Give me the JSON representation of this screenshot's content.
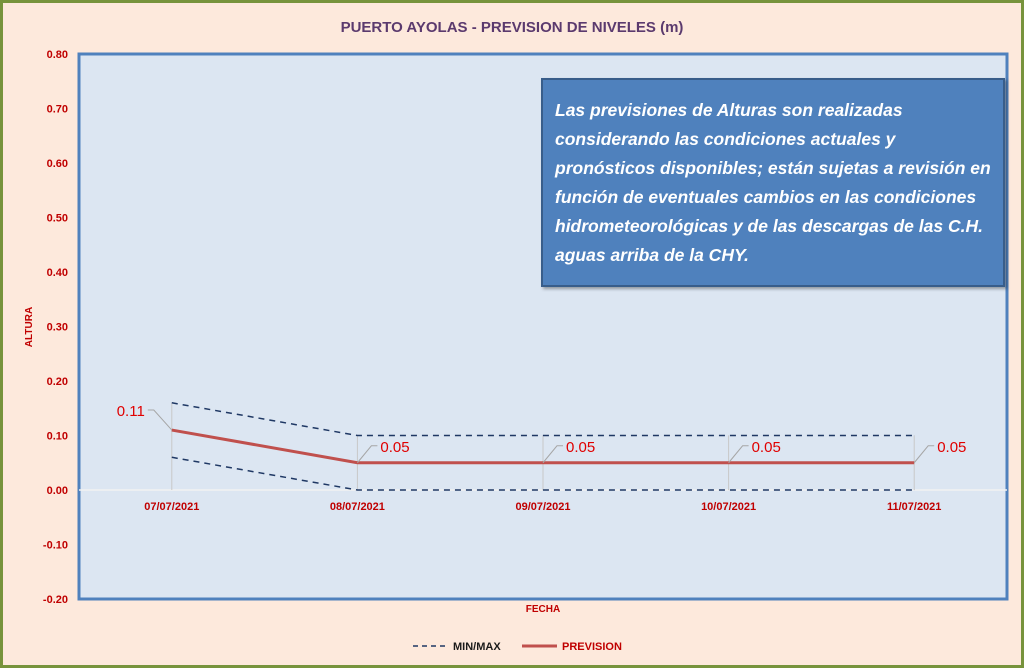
{
  "chart_data": {
    "type": "line",
    "title": "PUERTO AYOLAS - PREVISION DE NIVELES (m)",
    "xlabel": "FECHA",
    "ylabel": "ALTURA",
    "ylim": [
      -0.2,
      0.8
    ],
    "yticks": [
      "0.80",
      "0.70",
      "0.60",
      "0.50",
      "0.40",
      "0.30",
      "0.20",
      "0.10",
      "0.00",
      "-0.10",
      "-0.20"
    ],
    "categories": [
      "07/07/2021",
      "08/07/2021",
      "09/07/2021",
      "10/07/2021",
      "11/07/2021"
    ],
    "series": [
      {
        "name": "MIN/MAX",
        "style": "dashed",
        "color": "#1f3864",
        "values": [
          0.16,
          0.1,
          0.1,
          0.1,
          0.1
        ]
      },
      {
        "name": "MIN/MAX",
        "style": "dashed",
        "color": "#1f3864",
        "values": [
          0.06,
          0.0,
          0.0,
          0.0,
          0.0
        ],
        "legend": false
      },
      {
        "name": "PREVISION",
        "style": "solid",
        "color": "#c0504d",
        "values": [
          0.11,
          0.05,
          0.05,
          0.05,
          0.05
        ],
        "labels": [
          "0.11",
          "0.05",
          "0.05",
          "0.05",
          "0.05"
        ]
      }
    ],
    "legend": {
      "position": "bottom",
      "items": [
        "MIN/MAX",
        "PREVISION"
      ]
    },
    "annotation": "Las previsiones de Alturas son realizadas considerando las condiciones actuales y pronósticos disponibles;  están sujetas a revisión en función de eventuales cambios en las condiciones hidrometeorológicas y de las descargas de las C.H. aguas arriba de la CHY."
  }
}
